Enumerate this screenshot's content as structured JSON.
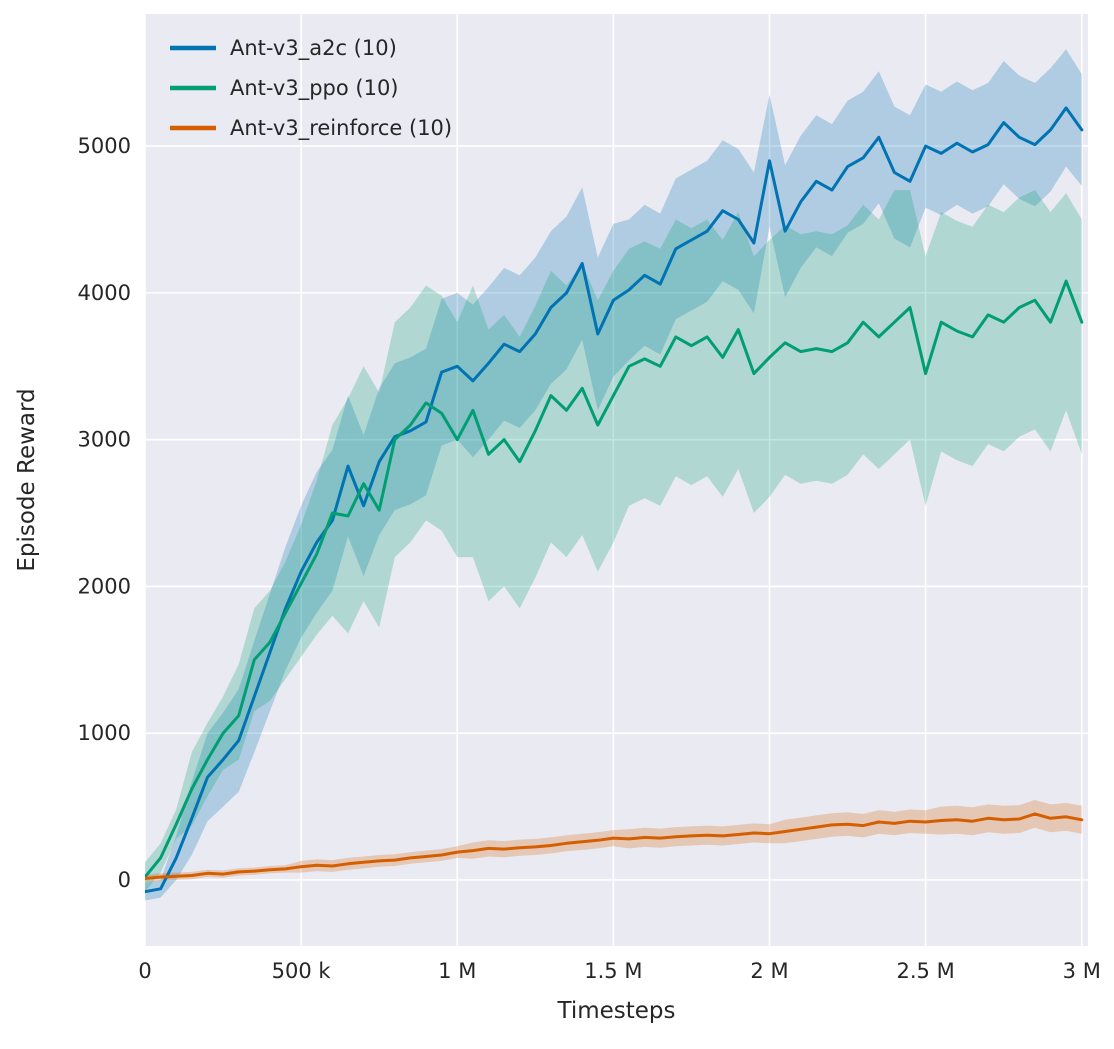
{
  "chart_data": {
    "type": "line",
    "title": "",
    "xlabel": "Timesteps",
    "ylabel": "Episode Reward",
    "xlim": [
      0,
      3020000
    ],
    "ylim": [
      -450,
      5900
    ],
    "grid": true,
    "legend_position": "top-left",
    "background_color": "#eaeaf2",
    "grid_color": "#ffffff",
    "text_color": "#262626",
    "band_opacity": 0.25,
    "x_ticks": [
      {
        "v": 0,
        "label": "0"
      },
      {
        "v": 500000,
        "label": "500 k"
      },
      {
        "v": 1000000,
        "label": "1 M"
      },
      {
        "v": 1500000,
        "label": "1.5 M"
      },
      {
        "v": 2000000,
        "label": "2 M"
      },
      {
        "v": 2500000,
        "label": "2.5 M"
      },
      {
        "v": 3000000,
        "label": "3 M"
      }
    ],
    "y_ticks": [
      {
        "v": 0,
        "label": "0"
      },
      {
        "v": 1000,
        "label": "1000"
      },
      {
        "v": 2000,
        "label": "2000"
      },
      {
        "v": 3000,
        "label": "3000"
      },
      {
        "v": 4000,
        "label": "4000"
      },
      {
        "v": 5000,
        "label": "5000"
      }
    ],
    "x_start": 0,
    "x_step": 50000,
    "series": [
      {
        "name": "Ant-v3_a2c (10)",
        "color": "#0173b2",
        "mean": [
          -80,
          -60,
          150,
          420,
          700,
          820,
          950,
          1250,
          1550,
          1850,
          2100,
          2300,
          2450,
          2820,
          2550,
          2850,
          3020,
          3060,
          3120,
          3460,
          3500,
          3400,
          3520,
          3650,
          3600,
          3720,
          3900,
          4000,
          4200,
          3720,
          3950,
          4020,
          4120,
          4060,
          4300,
          4360,
          4420,
          4560,
          4500,
          4340,
          4900,
          4420,
          4620,
          4760,
          4700,
          4860,
          4920,
          5060,
          4820,
          4760,
          5000,
          4950,
          5020,
          4960,
          5010,
          5160,
          5060,
          5010,
          5110,
          5260,
          5110
        ],
        "lower": [
          -140,
          -120,
          0,
          170,
          400,
          500,
          600,
          870,
          1150,
          1430,
          1650,
          1820,
          1970,
          2340,
          2070,
          2350,
          2520,
          2560,
          2620,
          2960,
          3000,
          2880,
          3000,
          3130,
          3080,
          3200,
          3380,
          3480,
          3680,
          3200,
          3430,
          3540,
          3640,
          3580,
          3820,
          3880,
          3940,
          4080,
          4020,
          3860,
          4450,
          3970,
          4170,
          4310,
          4250,
          4410,
          4470,
          4610,
          4370,
          4310,
          4580,
          4530,
          4600,
          4540,
          4590,
          4740,
          4640,
          4590,
          4690,
          4860,
          4730
        ],
        "upper": [
          -20,
          0,
          300,
          670,
          1000,
          1140,
          1300,
          1630,
          1950,
          2270,
          2550,
          2780,
          2930,
          3300,
          3030,
          3350,
          3520,
          3560,
          3620,
          3960,
          4000,
          3920,
          4040,
          4170,
          4120,
          4240,
          4420,
          4520,
          4720,
          4240,
          4470,
          4500,
          4600,
          4540,
          4780,
          4840,
          4900,
          5040,
          4980,
          4820,
          5350,
          4870,
          5070,
          5210,
          5150,
          5310,
          5370,
          5510,
          5270,
          5210,
          5420,
          5370,
          5440,
          5380,
          5430,
          5580,
          5480,
          5430,
          5530,
          5660,
          5490
        ]
      },
      {
        "name": "Ant-v3_ppo (10)",
        "color": "#029e73",
        "mean": [
          20,
          150,
          380,
          620,
          820,
          1000,
          1120,
          1500,
          1620,
          1820,
          2020,
          2220,
          2500,
          2480,
          2700,
          2520,
          3000,
          3100,
          3250,
          3180,
          3000,
          3200,
          2900,
          3000,
          2850,
          3060,
          3300,
          3200,
          3350,
          3100,
          3300,
          3500,
          3550,
          3500,
          3700,
          3640,
          3700,
          3560,
          3750,
          3450,
          3560,
          3660,
          3600,
          3620,
          3600,
          3660,
          3800,
          3700,
          3800,
          3900,
          3450,
          3800,
          3740,
          3700,
          3850,
          3800,
          3900,
          3950,
          3800,
          4080,
          3800
        ],
        "lower": [
          -80,
          50,
          280,
          370,
          570,
          750,
          820,
          1150,
          1220,
          1370,
          1520,
          1670,
          1800,
          1680,
          1900,
          1720,
          2200,
          2300,
          2450,
          2380,
          2200,
          2200,
          1900,
          2000,
          1850,
          2060,
          2300,
          2200,
          2350,
          2100,
          2300,
          2550,
          2600,
          2550,
          2750,
          2690,
          2750,
          2610,
          2800,
          2500,
          2610,
          2760,
          2700,
          2720,
          2700,
          2760,
          2900,
          2800,
          2900,
          3000,
          2550,
          2920,
          2860,
          2820,
          2970,
          2920,
          3020,
          3070,
          2920,
          3200,
          2900
        ],
        "upper": [
          120,
          250,
          480,
          870,
          1070,
          1250,
          1470,
          1850,
          1970,
          2170,
          2420,
          2720,
          3100,
          3280,
          3500,
          3320,
          3800,
          3900,
          4050,
          3980,
          3800,
          4050,
          3750,
          3850,
          3700,
          3910,
          4150,
          4050,
          4200,
          3950,
          4150,
          4300,
          4350,
          4300,
          4500,
          4440,
          4500,
          4360,
          4550,
          4250,
          4360,
          4460,
          4400,
          4420,
          4400,
          4460,
          4600,
          4500,
          4700,
          4700,
          4250,
          4550,
          4490,
          4450,
          4600,
          4550,
          4650,
          4700,
          4550,
          4680,
          4500
        ]
      },
      {
        "name": "Ant-v3_reinforce (10)",
        "color": "#d55e00",
        "mean": [
          10,
          20,
          25,
          30,
          45,
          40,
          55,
          60,
          70,
          75,
          90,
          100,
          95,
          110,
          120,
          130,
          135,
          150,
          160,
          170,
          190,
          200,
          215,
          210,
          220,
          225,
          235,
          250,
          260,
          270,
          285,
          280,
          290,
          285,
          295,
          300,
          305,
          300,
          310,
          320,
          315,
          330,
          345,
          360,
          375,
          380,
          370,
          395,
          385,
          400,
          395,
          405,
          410,
          400,
          420,
          410,
          415,
          450,
          420,
          430,
          410
        ],
        "lower": [
          -15,
          -5,
          0,
          5,
          20,
          15,
          30,
          35,
          45,
          50,
          50,
          60,
          55,
          70,
          80,
          90,
          95,
          110,
          120,
          130,
          150,
          145,
          160,
          155,
          165,
          170,
          180,
          195,
          205,
          215,
          230,
          215,
          225,
          220,
          230,
          235,
          240,
          235,
          245,
          255,
          250,
          250,
          265,
          280,
          295,
          300,
          290,
          315,
          305,
          320,
          315,
          310,
          315,
          305,
          325,
          315,
          320,
          355,
          325,
          335,
          315
        ],
        "upper": [
          35,
          45,
          50,
          55,
          70,
          65,
          80,
          85,
          95,
          100,
          130,
          140,
          135,
          150,
          160,
          170,
          175,
          190,
          200,
          210,
          230,
          255,
          270,
          265,
          275,
          280,
          290,
          305,
          315,
          325,
          340,
          345,
          355,
          350,
          360,
          365,
          370,
          365,
          375,
          385,
          380,
          410,
          425,
          440,
          455,
          460,
          450,
          475,
          465,
          480,
          475,
          500,
          505,
          495,
          515,
          505,
          510,
          545,
          515,
          525,
          505
        ]
      }
    ]
  }
}
